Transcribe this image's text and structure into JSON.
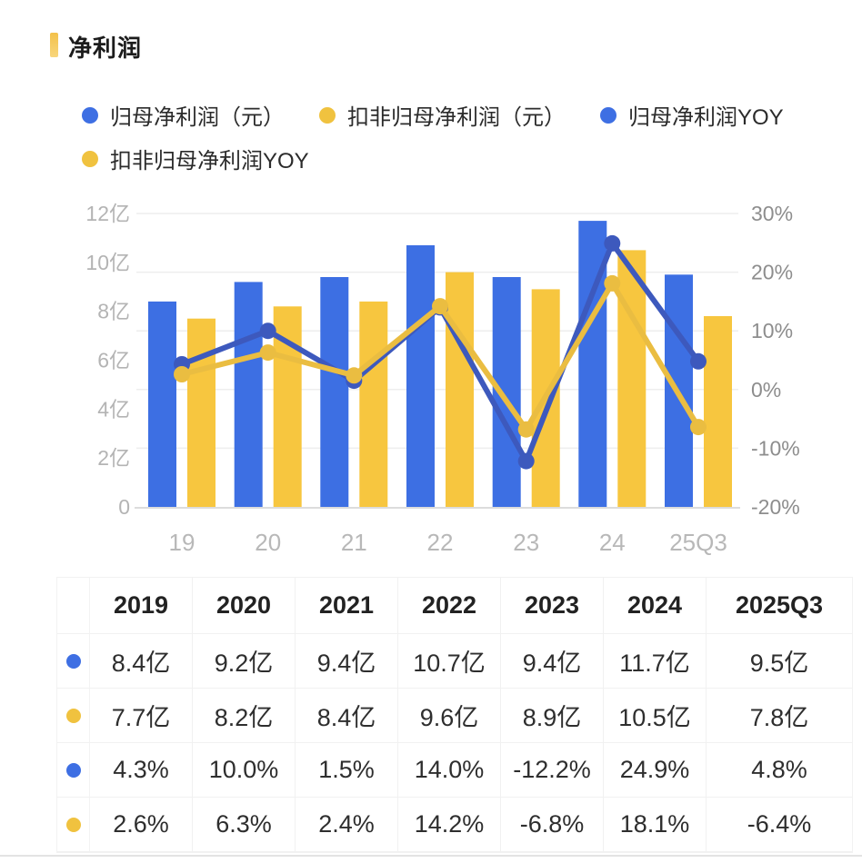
{
  "title": {
    "text": "净利润"
  },
  "legend": {
    "items": [
      {
        "label": "归母净利润（元）",
        "color": "#3e6fe3"
      },
      {
        "label": "扣非归母净利润（元）",
        "color": "#f0c23f"
      },
      {
        "label": "归母净利润YOY",
        "color": "#3e6fe3"
      },
      {
        "label": "扣非归母净利润YOY",
        "color": "#f0c23f"
      }
    ]
  },
  "chart_data": {
    "type": "combo-bar-line-dual-axis",
    "categories": [
      "19",
      "20",
      "21",
      "22",
      "23",
      "24",
      "25Q3"
    ],
    "bar_series": [
      {
        "name": "归母净利润（元）",
        "unit": "亿",
        "color": "#3d6fe3",
        "values": [
          8.4,
          9.2,
          9.4,
          10.7,
          9.4,
          11.7,
          9.5
        ]
      },
      {
        "name": "扣非归母净利润（元）",
        "unit": "亿",
        "color": "#f7c63f",
        "values": [
          7.7,
          8.2,
          8.4,
          9.6,
          8.9,
          10.5,
          7.8
        ]
      }
    ],
    "line_series": [
      {
        "name": "归母净利润YOY",
        "unit": "%",
        "color": "#3d59bd",
        "values": [
          4.3,
          10.0,
          1.5,
          14.0,
          -12.2,
          24.9,
          4.8
        ]
      },
      {
        "name": "扣非归母净利润YOY",
        "unit": "%",
        "color": "#eabd41",
        "values": [
          2.6,
          6.3,
          2.4,
          14.2,
          -6.8,
          18.1,
          -6.4
        ]
      }
    ],
    "left_axis": {
      "min": 0,
      "max": 12,
      "ticks_top_to_bottom": [
        "12亿",
        "10亿",
        "8亿",
        "6亿",
        "4亿",
        "2亿",
        "0"
      ]
    },
    "right_axis": {
      "min": -20,
      "max": 30,
      "ticks_top_to_bottom": [
        "30%",
        "20%",
        "10%",
        "0%",
        "-10%",
        "-20%"
      ]
    },
    "grid": true,
    "legend_position": "top"
  },
  "table": {
    "header": [
      "2019",
      "2020",
      "2021",
      "2022",
      "2023",
      "2024",
      "2025Q3"
    ],
    "rows": [
      {
        "dot": "blue",
        "cells": [
          "8.4亿",
          "9.2亿",
          "9.4亿",
          "10.7亿",
          "9.4亿",
          "11.7亿",
          "9.5亿"
        ]
      },
      {
        "dot": "yellow",
        "cells": [
          "7.7亿",
          "8.2亿",
          "8.4亿",
          "9.6亿",
          "8.9亿",
          "10.5亿",
          "7.8亿"
        ]
      },
      {
        "dot": "blue",
        "cells": [
          "4.3%",
          "10.0%",
          "1.5%",
          "14.0%",
          "-12.2%",
          "24.9%",
          "4.8%"
        ]
      },
      {
        "dot": "yellow",
        "cells": [
          "2.6%",
          "6.3%",
          "2.4%",
          "14.2%",
          "-6.8%",
          "18.1%",
          "-6.4%"
        ]
      }
    ]
  },
  "colors": {
    "bar_blue": "#3d6fe3",
    "bar_yellow": "#f7c63f",
    "line_blue": "#3d59bd",
    "line_yellow": "#eabd41",
    "title_accent": "#f5c54a",
    "axis_label_left": "#b4b4b4",
    "axis_label_right": "#8d8d8d",
    "gridline": "#eeeeee"
  }
}
